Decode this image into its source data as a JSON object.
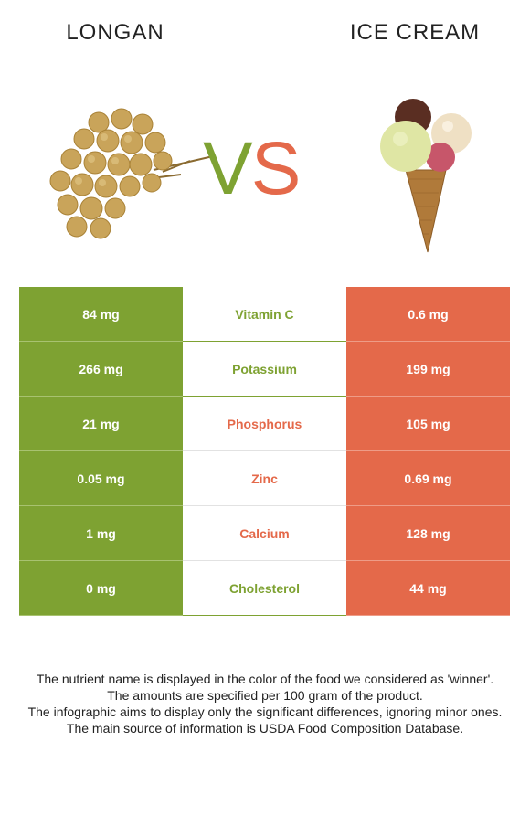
{
  "header": {
    "left_title": "LONGAN",
    "right_title": "ICE CREAM",
    "vs_v": "V",
    "vs_s": "S"
  },
  "colors": {
    "left_food": "#7ea232",
    "right_food": "#e4694a"
  },
  "images": {
    "left": "longan-fruit-image",
    "right": "ice-cream-cone-image"
  },
  "rows": [
    {
      "left": "84 mg",
      "nutrient": "Vitamin C",
      "right": "0.6 mg",
      "winner": "left"
    },
    {
      "left": "266 mg",
      "nutrient": "Potassium",
      "right": "199 mg",
      "winner": "left"
    },
    {
      "left": "21 mg",
      "nutrient": "Phosphorus",
      "right": "105 mg",
      "winner": "right"
    },
    {
      "left": "0.05 mg",
      "nutrient": "Zinc",
      "right": "0.69 mg",
      "winner": "right"
    },
    {
      "left": "1 mg",
      "nutrient": "Calcium",
      "right": "128 mg",
      "winner": "right"
    },
    {
      "left": "0 mg",
      "nutrient": "Cholesterol",
      "right": "44 mg",
      "winner": "left"
    }
  ],
  "footer": {
    "line1": "The nutrient name is displayed in the color of the food we considered as 'winner'.",
    "line2": "The amounts are specified per 100 gram of the product.",
    "line3": "The infographic aims to display only the significant differences, ignoring minor ones.",
    "line4": "The main source of information is USDA Food Composition Database."
  }
}
